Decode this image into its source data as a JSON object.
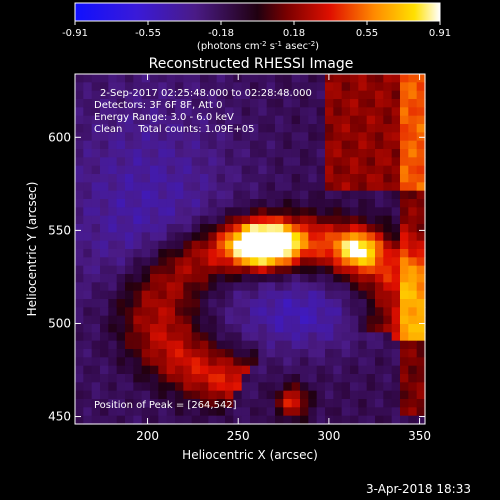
{
  "colorbar": {
    "ticks": [
      "-0.91",
      "-0.55",
      "-0.18",
      "0.18",
      "0.55",
      "0.91"
    ],
    "unit_prefix": "(photons cm",
    "unit_exp1": "-2",
    "unit_mid1": " s",
    "unit_exp2": "-1",
    "unit_mid2": " asec",
    "unit_exp3": "-2",
    "unit_suffix": ")"
  },
  "annotations": {
    "time_range": "2-Sep-2017 02:25:48.000 to 02:28:48.000",
    "detectors": "Detectors: 3F 6F 8F, Att 0",
    "energy_range": "Energy Range: 3.0 - 6.0 keV",
    "method_counts": "Clean     Total counts: 1.09E+05",
    "peak_position": "Position of Peak = [264,542]"
  },
  "footer": {
    "timestamp": "3-Apr-2018 18:33"
  },
  "chart_data": {
    "type": "heatmap",
    "title": "Reconstructed RHESSI Image",
    "xlabel": "Heliocentric X (arcsec)",
    "ylabel": "Heliocentric Y (arcsec)",
    "xlim": [
      160,
      353
    ],
    "ylim": [
      446,
      634
    ],
    "xticks": [
      200,
      250,
      300,
      350
    ],
    "yticks": [
      450,
      500,
      550,
      600
    ],
    "xtick_labels": [
      "200",
      "250",
      "300",
      "350"
    ],
    "ytick_labels": [
      "450",
      "500",
      "550",
      "600"
    ],
    "colorscale": {
      "min": -0.91,
      "max": 0.91,
      "palette": "blue-purple-red-orange-yellow-white"
    },
    "peak": {
      "x": 264,
      "y": 542,
      "value": 0.91
    },
    "features": [
      {
        "kind": "bright-core",
        "x": 264,
        "y": 542,
        "sx": 12,
        "sy": 8,
        "amp": 1.3
      },
      {
        "kind": "arc",
        "cx": 276,
        "cy": 505,
        "rx": 70,
        "ry": 40,
        "a0": -20,
        "a1": 250,
        "width": 10,
        "amp": 0.55
      },
      {
        "kind": "knot",
        "x": 316,
        "y": 540,
        "sx": 8,
        "sy": 7,
        "amp": 0.6
      },
      {
        "kind": "knot",
        "x": 280,
        "y": 458,
        "sx": 6,
        "sy": 6,
        "amp": 0.55
      },
      {
        "kind": "band",
        "x0": 300,
        "x1": 353,
        "y0": 570,
        "y1": 634,
        "amp": 0.35
      },
      {
        "kind": "band",
        "x0": 340,
        "x1": 353,
        "y0": 450,
        "y1": 634,
        "amp": 0.3
      },
      {
        "kind": "void",
        "x": 200,
        "y": 560,
        "sx": 35,
        "sy": 50,
        "amp": -0.25
      },
      {
        "kind": "void",
        "x": 285,
        "y": 505,
        "sx": 25,
        "sy": 14,
        "amp": -0.3
      }
    ]
  }
}
